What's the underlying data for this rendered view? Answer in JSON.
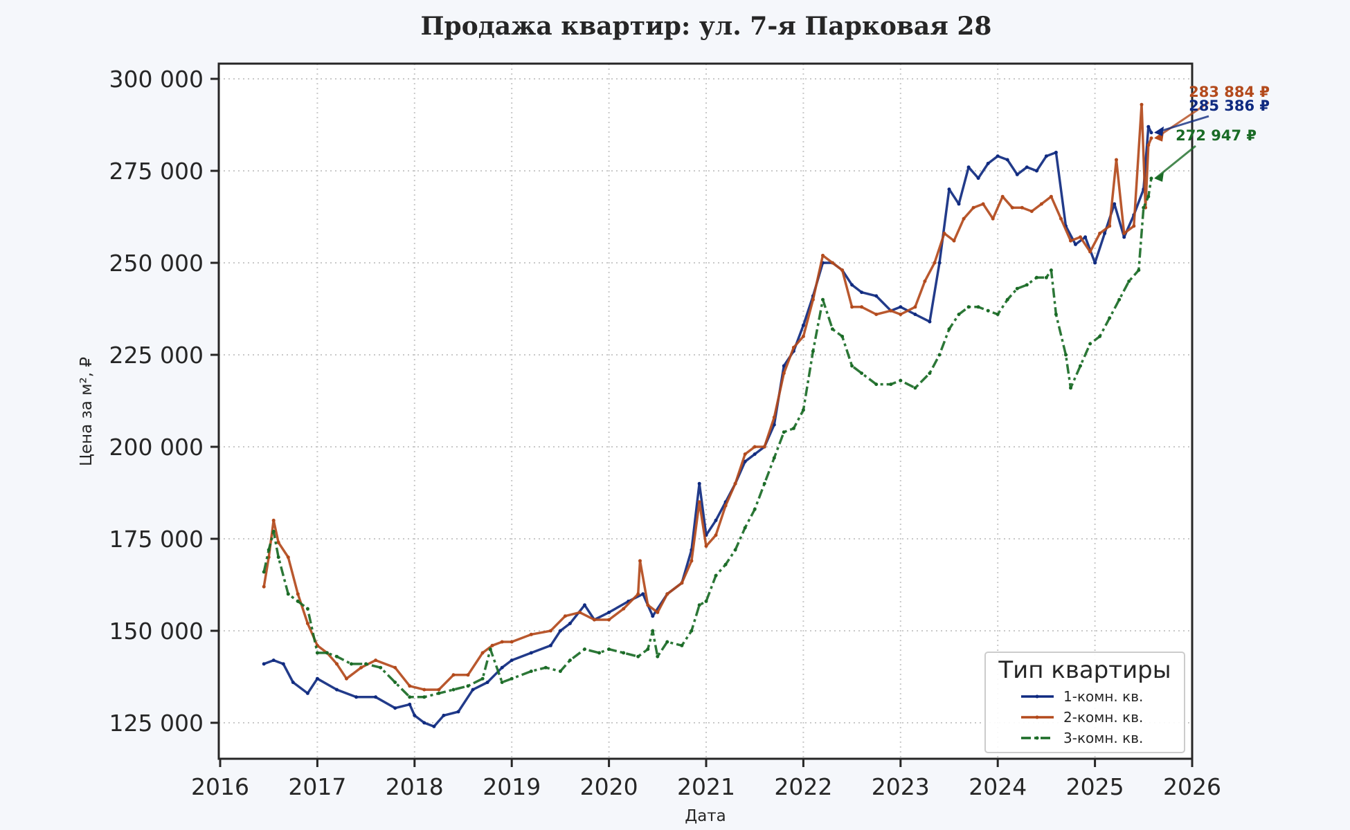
{
  "chart_data": {
    "type": "line",
    "title": "Продажа квартир: ул. 7-я Парковая 28",
    "xlabel": "Дата",
    "ylabel": "Цена за м², ₽",
    "xlim": [
      2016,
      2026
    ],
    "ylim": [
      115000,
      303000
    ],
    "xticks": [
      "2016",
      "2017",
      "2018",
      "2019",
      "2020",
      "2021",
      "2022",
      "2023",
      "2024",
      "2025",
      "2026"
    ],
    "yticks": [
      "125 000",
      "150 000",
      "175 000",
      "200 000",
      "225 000",
      "250 000",
      "275 000",
      "300 000"
    ],
    "grid": true,
    "legend": {
      "title": "Тип квартиры",
      "placement": "bottom-right"
    },
    "series": [
      {
        "name": "1-комн. кв.",
        "color": "#0f2a80",
        "points": [
          [
            2016.45,
            141000
          ],
          [
            2016.55,
            142000
          ],
          [
            2016.65,
            141000
          ],
          [
            2016.75,
            136000
          ],
          [
            2016.9,
            133000
          ],
          [
            2017.0,
            137000
          ],
          [
            2017.2,
            134000
          ],
          [
            2017.4,
            132000
          ],
          [
            2017.6,
            132000
          ],
          [
            2017.8,
            129000
          ],
          [
            2017.95,
            130000
          ],
          [
            2018.0,
            127000
          ],
          [
            2018.1,
            125000
          ],
          [
            2018.2,
            124000
          ],
          [
            2018.3,
            127000
          ],
          [
            2018.45,
            128000
          ],
          [
            2018.6,
            134000
          ],
          [
            2018.75,
            136000
          ],
          [
            2018.9,
            140000
          ],
          [
            2019.0,
            142000
          ],
          [
            2019.2,
            144000
          ],
          [
            2019.4,
            146000
          ],
          [
            2019.5,
            150000
          ],
          [
            2019.6,
            152000
          ],
          [
            2019.75,
            157000
          ],
          [
            2019.85,
            153000
          ],
          [
            2020.0,
            155000
          ],
          [
            2020.2,
            158000
          ],
          [
            2020.35,
            160000
          ],
          [
            2020.45,
            154000
          ],
          [
            2020.6,
            160000
          ],
          [
            2020.75,
            163000
          ],
          [
            2020.85,
            172000
          ],
          [
            2020.93,
            190000
          ],
          [
            2021.0,
            176000
          ],
          [
            2021.1,
            180000
          ],
          [
            2021.2,
            185000
          ],
          [
            2021.3,
            190000
          ],
          [
            2021.4,
            196000
          ],
          [
            2021.5,
            198000
          ],
          [
            2021.6,
            200000
          ],
          [
            2021.7,
            206000
          ],
          [
            2021.8,
            222000
          ],
          [
            2021.9,
            226000
          ],
          [
            2022.0,
            233000
          ],
          [
            2022.1,
            241000
          ],
          [
            2022.2,
            250000
          ],
          [
            2022.3,
            250000
          ],
          [
            2022.4,
            248000
          ],
          [
            2022.5,
            244000
          ],
          [
            2022.6,
            242000
          ],
          [
            2022.75,
            241000
          ],
          [
            2022.9,
            237000
          ],
          [
            2023.0,
            238000
          ],
          [
            2023.15,
            236000
          ],
          [
            2023.3,
            234000
          ],
          [
            2023.4,
            250000
          ],
          [
            2023.5,
            270000
          ],
          [
            2023.6,
            266000
          ],
          [
            2023.7,
            276000
          ],
          [
            2023.8,
            273000
          ],
          [
            2023.9,
            277000
          ],
          [
            2024.0,
            279000
          ],
          [
            2024.1,
            278000
          ],
          [
            2024.2,
            274000
          ],
          [
            2024.3,
            276000
          ],
          [
            2024.4,
            275000
          ],
          [
            2024.5,
            279000
          ],
          [
            2024.6,
            280000
          ],
          [
            2024.7,
            260000
          ],
          [
            2024.8,
            255000
          ],
          [
            2024.9,
            257000
          ],
          [
            2025.0,
            250000
          ],
          [
            2025.1,
            258000
          ],
          [
            2025.2,
            266000
          ],
          [
            2025.3,
            257000
          ],
          [
            2025.4,
            263000
          ],
          [
            2025.5,
            270000
          ],
          [
            2025.55,
            287000
          ],
          [
            2025.58,
            285386
          ]
        ]
      },
      {
        "name": "2-комн. кв.",
        "color": "#b34a1c",
        "points": [
          [
            2016.45,
            162000
          ],
          [
            2016.5,
            170000
          ],
          [
            2016.55,
            180000
          ],
          [
            2016.6,
            174000
          ],
          [
            2016.7,
            170000
          ],
          [
            2016.8,
            160000
          ],
          [
            2016.9,
            152000
          ],
          [
            2017.0,
            146000
          ],
          [
            2017.1,
            144000
          ],
          [
            2017.2,
            141000
          ],
          [
            2017.3,
            137000
          ],
          [
            2017.45,
            140000
          ],
          [
            2017.6,
            142000
          ],
          [
            2017.8,
            140000
          ],
          [
            2017.95,
            135000
          ],
          [
            2018.1,
            134000
          ],
          [
            2018.25,
            134000
          ],
          [
            2018.4,
            138000
          ],
          [
            2018.55,
            138000
          ],
          [
            2018.7,
            144000
          ],
          [
            2018.8,
            146000
          ],
          [
            2018.9,
            147000
          ],
          [
            2019.0,
            147000
          ],
          [
            2019.2,
            149000
          ],
          [
            2019.4,
            150000
          ],
          [
            2019.55,
            154000
          ],
          [
            2019.7,
            155000
          ],
          [
            2019.85,
            153000
          ],
          [
            2020.0,
            153000
          ],
          [
            2020.15,
            156000
          ],
          [
            2020.3,
            160000
          ],
          [
            2020.32,
            169000
          ],
          [
            2020.4,
            157000
          ],
          [
            2020.5,
            155000
          ],
          [
            2020.6,
            160000
          ],
          [
            2020.75,
            163000
          ],
          [
            2020.85,
            169000
          ],
          [
            2020.93,
            185000
          ],
          [
            2021.0,
            173000
          ],
          [
            2021.1,
            176000
          ],
          [
            2021.2,
            184000
          ],
          [
            2021.3,
            190000
          ],
          [
            2021.4,
            198000
          ],
          [
            2021.5,
            200000
          ],
          [
            2021.6,
            200000
          ],
          [
            2021.7,
            208000
          ],
          [
            2021.8,
            220000
          ],
          [
            2021.9,
            227000
          ],
          [
            2022.0,
            230000
          ],
          [
            2022.1,
            240000
          ],
          [
            2022.2,
            252000
          ],
          [
            2022.3,
            250000
          ],
          [
            2022.4,
            248000
          ],
          [
            2022.5,
            238000
          ],
          [
            2022.6,
            238000
          ],
          [
            2022.75,
            236000
          ],
          [
            2022.9,
            237000
          ],
          [
            2023.0,
            236000
          ],
          [
            2023.15,
            238000
          ],
          [
            2023.25,
            245000
          ],
          [
            2023.35,
            250000
          ],
          [
            2023.45,
            258000
          ],
          [
            2023.55,
            256000
          ],
          [
            2023.65,
            262000
          ],
          [
            2023.75,
            265000
          ],
          [
            2023.85,
            266000
          ],
          [
            2023.95,
            262000
          ],
          [
            2024.05,
            268000
          ],
          [
            2024.15,
            265000
          ],
          [
            2024.25,
            265000
          ],
          [
            2024.35,
            264000
          ],
          [
            2024.45,
            266000
          ],
          [
            2024.55,
            268000
          ],
          [
            2024.65,
            262000
          ],
          [
            2024.75,
            256000
          ],
          [
            2024.85,
            257000
          ],
          [
            2024.95,
            253000
          ],
          [
            2025.05,
            258000
          ],
          [
            2025.15,
            260000
          ],
          [
            2025.22,
            278000
          ],
          [
            2025.3,
            258000
          ],
          [
            2025.4,
            260000
          ],
          [
            2025.48,
            293000
          ],
          [
            2025.52,
            265000
          ],
          [
            2025.55,
            282000
          ],
          [
            2025.58,
            283884
          ]
        ]
      },
      {
        "name": "3-комн. кв.",
        "color": "#1a6b26",
        "points": [
          [
            2016.45,
            166000
          ],
          [
            2016.5,
            172000
          ],
          [
            2016.55,
            177000
          ],
          [
            2016.6,
            170000
          ],
          [
            2016.7,
            160000
          ],
          [
            2016.8,
            158000
          ],
          [
            2016.9,
            156000
          ],
          [
            2017.0,
            144000
          ],
          [
            2017.1,
            144000
          ],
          [
            2017.2,
            143000
          ],
          [
            2017.35,
            141000
          ],
          [
            2017.5,
            141000
          ],
          [
            2017.65,
            140000
          ],
          [
            2017.8,
            136000
          ],
          [
            2017.95,
            132000
          ],
          [
            2018.1,
            132000
          ],
          [
            2018.25,
            133000
          ],
          [
            2018.4,
            134000
          ],
          [
            2018.55,
            135000
          ],
          [
            2018.7,
            137000
          ],
          [
            2018.78,
            145000
          ],
          [
            2018.9,
            136000
          ],
          [
            2019.0,
            137000
          ],
          [
            2019.2,
            139000
          ],
          [
            2019.35,
            140000
          ],
          [
            2019.5,
            139000
          ],
          [
            2019.6,
            142000
          ],
          [
            2019.75,
            145000
          ],
          [
            2019.9,
            144000
          ],
          [
            2020.0,
            145000
          ],
          [
            2020.15,
            144000
          ],
          [
            2020.3,
            143000
          ],
          [
            2020.4,
            145000
          ],
          [
            2020.45,
            150000
          ],
          [
            2020.5,
            143000
          ],
          [
            2020.6,
            147000
          ],
          [
            2020.75,
            146000
          ],
          [
            2020.85,
            150000
          ],
          [
            2020.93,
            157000
          ],
          [
            2021.0,
            158000
          ],
          [
            2021.1,
            165000
          ],
          [
            2021.2,
            168000
          ],
          [
            2021.3,
            172000
          ],
          [
            2021.4,
            178000
          ],
          [
            2021.5,
            183000
          ],
          [
            2021.6,
            190000
          ],
          [
            2021.7,
            197000
          ],
          [
            2021.8,
            204000
          ],
          [
            2021.9,
            205000
          ],
          [
            2022.0,
            210000
          ],
          [
            2022.1,
            226000
          ],
          [
            2022.2,
            240000
          ],
          [
            2022.3,
            232000
          ],
          [
            2022.4,
            230000
          ],
          [
            2022.5,
            222000
          ],
          [
            2022.6,
            220000
          ],
          [
            2022.75,
            217000
          ],
          [
            2022.9,
            217000
          ],
          [
            2023.0,
            218000
          ],
          [
            2023.15,
            216000
          ],
          [
            2023.3,
            220000
          ],
          [
            2023.4,
            225000
          ],
          [
            2023.5,
            232000
          ],
          [
            2023.6,
            236000
          ],
          [
            2023.7,
            238000
          ],
          [
            2023.8,
            238000
          ],
          [
            2023.9,
            237000
          ],
          [
            2024.0,
            236000
          ],
          [
            2024.1,
            240000
          ],
          [
            2024.2,
            243000
          ],
          [
            2024.3,
            244000
          ],
          [
            2024.4,
            246000
          ],
          [
            2024.5,
            246000
          ],
          [
            2024.55,
            248000
          ],
          [
            2024.6,
            236000
          ],
          [
            2024.7,
            225000
          ],
          [
            2024.75,
            216000
          ],
          [
            2024.85,
            222000
          ],
          [
            2024.95,
            228000
          ],
          [
            2025.05,
            230000
          ],
          [
            2025.15,
            235000
          ],
          [
            2025.25,
            240000
          ],
          [
            2025.35,
            245000
          ],
          [
            2025.45,
            248000
          ],
          [
            2025.5,
            265000
          ],
          [
            2025.55,
            268000
          ],
          [
            2025.58,
            272947
          ]
        ]
      }
    ],
    "annotations": [
      {
        "text": "283 884 ₽",
        "series": 1,
        "x": 2025.58,
        "y": 283884,
        "color": "#b34a1c"
      },
      {
        "text": "285 386 ₽",
        "series": 0,
        "x": 2025.58,
        "y": 285386,
        "color": "#0f2a80"
      },
      {
        "text": "272 947 ₽",
        "series": 2,
        "x": 2025.58,
        "y": 272947,
        "color": "#1a6b26"
      }
    ]
  }
}
